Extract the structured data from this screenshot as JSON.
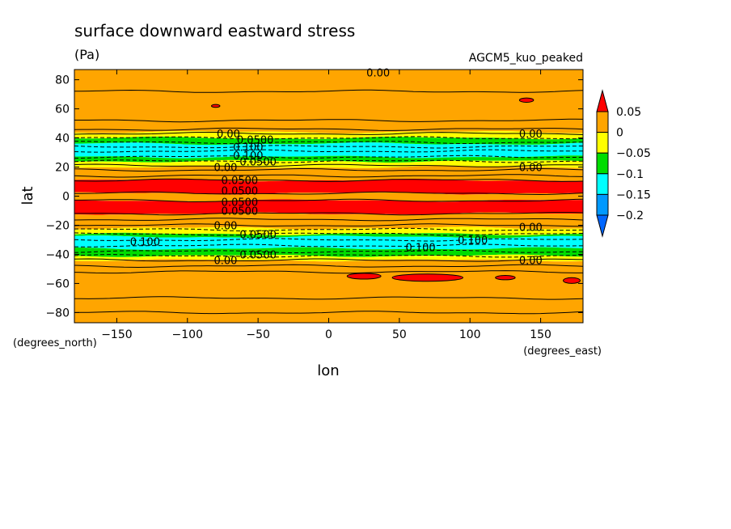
{
  "chart_data": {
    "type": "heatmap",
    "title": "surface downward eastward stress",
    "subtitle": "(Pa)",
    "model_label": "AGCM5_kuo_peaked",
    "xlabel": "lon",
    "ylabel": "lat",
    "x_units": "(degrees_east)",
    "y_units": "(degrees_north)",
    "xlim": [
      -180,
      180
    ],
    "ylim": [
      -87,
      87
    ],
    "x_ticks": [
      -150,
      -100,
      -50,
      0,
      50,
      100,
      150
    ],
    "y_ticks": [
      80,
      60,
      40,
      20,
      0,
      -20,
      -40,
      -60,
      -80
    ],
    "legend": {
      "placement": "right",
      "levels": [
        0.05,
        0,
        -0.05,
        -0.1,
        -0.15,
        -0.2
      ],
      "level_labels": [
        "0.05",
        "0",
        "−0.05",
        "−0.1",
        "−0.15",
        "−0.2"
      ],
      "colors": [
        "#ff0000",
        "#ffa500",
        "#ffff00",
        "#00dd00",
        "#00ffff",
        "#0099ff",
        "#0066ff"
      ],
      "extend": "both"
    },
    "zonal_bands": [
      {
        "lat_from": 87,
        "lat_to": 44,
        "color": "#ffa500"
      },
      {
        "lat_from": 44,
        "lat_to": 40,
        "color": "#ffff00"
      },
      {
        "lat_from": 40,
        "lat_to": 36,
        "color": "#00dd00"
      },
      {
        "lat_from": 36,
        "lat_to": 27,
        "color": "#00ffff"
      },
      {
        "lat_from": 27,
        "lat_to": 24,
        "color": "#00dd00"
      },
      {
        "lat_from": 24,
        "lat_to": 20,
        "color": "#ffff00"
      },
      {
        "lat_from": 20,
        "lat_to": 11,
        "color": "#ffa500"
      },
      {
        "lat_from": 11,
        "lat_to": 2,
        "color": "#ff0000"
      },
      {
        "lat_from": 2,
        "lat_to": -3,
        "color": "#ffa500"
      },
      {
        "lat_from": -3,
        "lat_to": -12,
        "color": "#ff0000"
      },
      {
        "lat_from": -12,
        "lat_to": -22,
        "color": "#ffa500"
      },
      {
        "lat_from": -22,
        "lat_to": -26,
        "color": "#ffff00"
      },
      {
        "lat_from": -26,
        "lat_to": -28,
        "color": "#00dd00"
      },
      {
        "lat_from": -28,
        "lat_to": -36,
        "color": "#00ffff"
      },
      {
        "lat_from": -36,
        "lat_to": -41,
        "color": "#00dd00"
      },
      {
        "lat_from": -41,
        "lat_to": -44,
        "color": "#ffff00"
      },
      {
        "lat_from": -44,
        "lat_to": -87,
        "color": "#ffa500"
      }
    ],
    "contour_lats": [
      {
        "lat": 72,
        "style": "solid"
      },
      {
        "lat": 52,
        "style": "solid"
      },
      {
        "lat": 46,
        "style": "solid"
      },
      {
        "lat": 43,
        "style": "solid"
      },
      {
        "lat": 40,
        "style": "dashed"
      },
      {
        "lat": 37,
        "style": "dashed"
      },
      {
        "lat": 34,
        "style": "dashed"
      },
      {
        "lat": 31,
        "style": "dashed"
      },
      {
        "lat": 27,
        "style": "dashed"
      },
      {
        "lat": 24,
        "style": "dashed"
      },
      {
        "lat": 21,
        "style": "solid"
      },
      {
        "lat": 18,
        "style": "solid"
      },
      {
        "lat": 14,
        "style": "solid"
      },
      {
        "lat": 11,
        "style": "solid"
      },
      {
        "lat": 2,
        "style": "solid"
      },
      {
        "lat": -3,
        "style": "solid"
      },
      {
        "lat": -12,
        "style": "solid"
      },
      {
        "lat": -16,
        "style": "solid"
      },
      {
        "lat": -20,
        "style": "solid"
      },
      {
        "lat": -23,
        "style": "dashed"
      },
      {
        "lat": -26,
        "style": "dashed"
      },
      {
        "lat": -30,
        "style": "dashed"
      },
      {
        "lat": -34,
        "style": "dashed"
      },
      {
        "lat": -38,
        "style": "dashed"
      },
      {
        "lat": -41,
        "style": "dashed"
      },
      {
        "lat": -44,
        "style": "solid"
      },
      {
        "lat": -48,
        "style": "solid"
      },
      {
        "lat": -52,
        "style": "solid"
      },
      {
        "lat": -70,
        "style": "solid"
      },
      {
        "lat": -80,
        "style": "solid"
      }
    ],
    "red_patches": [
      {
        "lon": -80,
        "lat": 62,
        "rlon": 3,
        "rlat": 1
      },
      {
        "lon": 140,
        "lat": 66,
        "rlon": 5,
        "rlat": 1.5
      },
      {
        "lon": 25,
        "lat": -55,
        "rlon": 12,
        "rlat": 2
      },
      {
        "lon": 70,
        "lat": -56,
        "rlon": 25,
        "rlat": 2.5
      },
      {
        "lon": 125,
        "lat": -56,
        "rlon": 7,
        "rlat": 1.5
      },
      {
        "lon": 172,
        "lat": -58,
        "rlon": 6,
        "rlat": 2
      }
    ],
    "contour_labels": [
      {
        "text": "0.00",
        "lon": 35,
        "lat": 85
      },
      {
        "text": "0.00",
        "lon": -71,
        "lat": 43
      },
      {
        "text": "0.0500",
        "lon": -52,
        "lat": 39
      },
      {
        "text": "0.100",
        "lon": -57,
        "lat": 34
      },
      {
        "text": "0.100",
        "lon": -57,
        "lat": 28
      },
      {
        "text": "0.0500",
        "lon": -50,
        "lat": 24
      },
      {
        "text": "0.00",
        "lon": -73,
        "lat": 20
      },
      {
        "text": "0.0500",
        "lon": -63,
        "lat": 11
      },
      {
        "text": "0.0500",
        "lon": -63,
        "lat": 4
      },
      {
        "text": "0.0500",
        "lon": -63,
        "lat": -4
      },
      {
        "text": "0.0500",
        "lon": -63,
        "lat": -10
      },
      {
        "text": "0.00",
        "lon": -73,
        "lat": -20
      },
      {
        "text": "0.0500",
        "lon": -50,
        "lat": -26
      },
      {
        "text": "0.100",
        "lon": -130,
        "lat": -31
      },
      {
        "text": "0.100",
        "lon": 65,
        "lat": -35
      },
      {
        "text": "0.100",
        "lon": 102,
        "lat": -30
      },
      {
        "text": "0.0500",
        "lon": -50,
        "lat": -40
      },
      {
        "text": "0.00",
        "lon": -73,
        "lat": -44
      },
      {
        "text": "0.00",
        "lon": 143,
        "lat": 43
      },
      {
        "text": "0.00",
        "lon": 143,
        "lat": 20
      },
      {
        "text": "0.00",
        "lon": 143,
        "lat": -21
      },
      {
        "text": "0.00",
        "lon": 143,
        "lat": -44
      }
    ]
  }
}
